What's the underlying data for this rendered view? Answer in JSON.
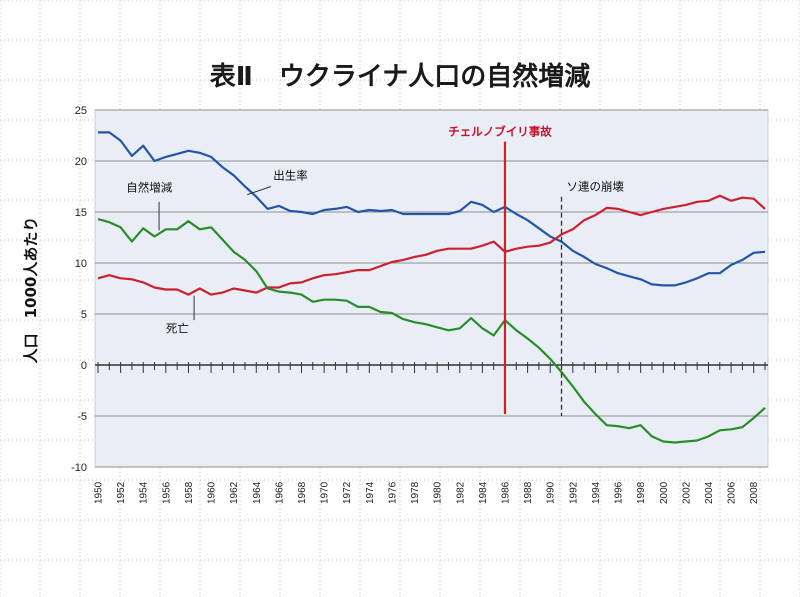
{
  "chart_data": {
    "type": "line",
    "title": "表Ⅱ　ウクライナ人口の自然増減",
    "ylabel": "人口　1000人あたり",
    "xlabel": "",
    "ylim": [
      -10,
      25
    ],
    "yticks": [
      -10,
      -5,
      0,
      5,
      10,
      15,
      20,
      25
    ],
    "xlim": [
      1950,
      2009
    ],
    "xtick_labels": [
      "1950",
      "1952",
      "1954",
      "1956",
      "1958",
      "1960",
      "1962",
      "1964",
      "1966",
      "1968",
      "1970",
      "1972",
      "1974",
      "1976",
      "1978",
      "1980",
      "1982",
      "1984",
      "1986",
      "1988",
      "1990",
      "1992",
      "1994",
      "1996",
      "1998",
      "2000",
      "2002",
      "2004",
      "2006",
      "2008"
    ],
    "grid": true,
    "x": [
      1950,
      1951,
      1952,
      1953,
      1954,
      1955,
      1956,
      1957,
      1958,
      1959,
      1960,
      1961,
      1962,
      1963,
      1964,
      1965,
      1966,
      1967,
      1968,
      1969,
      1970,
      1971,
      1972,
      1973,
      1974,
      1975,
      1976,
      1977,
      1978,
      1979,
      1980,
      1981,
      1982,
      1983,
      1984,
      1985,
      1986,
      1987,
      1988,
      1989,
      1990,
      1991,
      1992,
      1993,
      1994,
      1995,
      1996,
      1997,
      1998,
      1999,
      2000,
      2001,
      2002,
      2003,
      2004,
      2005,
      2006,
      2007,
      2008,
      2009
    ],
    "series": [
      {
        "name": "出生率",
        "color": "#2456a6",
        "values": [
          22.8,
          22.8,
          22.0,
          20.5,
          21.5,
          20.0,
          20.4,
          20.7,
          21.0,
          20.8,
          20.4,
          19.4,
          18.6,
          17.5,
          16.5,
          15.3,
          15.6,
          15.1,
          15.0,
          14.8,
          15.2,
          15.3,
          15.5,
          15.0,
          15.2,
          15.1,
          15.2,
          14.8,
          14.8,
          14.8,
          14.8,
          14.8,
          15.1,
          16.0,
          15.7,
          15.0,
          15.5,
          14.8,
          14.2,
          13.4,
          12.6,
          12.1,
          11.2,
          10.6,
          9.9,
          9.5,
          9.0,
          8.7,
          8.4,
          7.9,
          7.8,
          7.8,
          8.1,
          8.5,
          9.0,
          9.0,
          9.8,
          10.3,
          11.0,
          11.1
        ]
      },
      {
        "name": "死亡",
        "color": "#cc1f2f",
        "values": [
          8.5,
          8.8,
          8.5,
          8.4,
          8.1,
          7.6,
          7.4,
          7.4,
          6.9,
          7.5,
          6.9,
          7.1,
          7.5,
          7.3,
          7.1,
          7.6,
          7.6,
          8.0,
          8.1,
          8.5,
          8.8,
          8.9,
          9.1,
          9.3,
          9.3,
          9.7,
          10.1,
          10.3,
          10.6,
          10.8,
          11.2,
          11.4,
          11.4,
          11.4,
          11.7,
          12.1,
          11.1,
          11.4,
          11.6,
          11.7,
          12.0,
          12.8,
          13.3,
          14.2,
          14.7,
          15.4,
          15.3,
          15.0,
          14.7,
          15.0,
          15.3,
          15.5,
          15.7,
          16.0,
          16.1,
          16.6,
          16.1,
          16.4,
          16.3,
          15.3
        ]
      },
      {
        "name": "自然増減",
        "color": "#2a8c2a",
        "values": [
          14.3,
          14.0,
          13.5,
          12.1,
          13.4,
          12.6,
          13.3,
          13.3,
          14.1,
          13.3,
          13.5,
          12.3,
          11.1,
          10.3,
          9.2,
          7.5,
          7.2,
          7.1,
          6.9,
          6.2,
          6.4,
          6.4,
          6.3,
          5.7,
          5.7,
          5.2,
          5.1,
          4.5,
          4.2,
          4.0,
          3.7,
          3.4,
          3.6,
          4.6,
          3.6,
          2.9,
          4.4,
          3.4,
          2.6,
          1.7,
          0.6,
          -0.7,
          -2.1,
          -3.6,
          -4.8,
          -5.9,
          -6.0,
          -6.2,
          -5.9,
          -7.0,
          -7.5,
          -7.6,
          -7.5,
          -7.4,
          -7.0,
          -6.4,
          -6.3,
          -6.1,
          -5.2,
          -4.2
        ]
      }
    ],
    "annotations": [
      {
        "text": "出生率",
        "x": 1965.5,
        "y": 18.2
      },
      {
        "text": "自然増減",
        "x": 1952.5,
        "y": 17.0
      },
      {
        "text": "死亡",
        "x": 1956,
        "y": 3.2
      }
    ],
    "events": [
      {
        "label": "チェルノブイリ事故",
        "year": 1986,
        "color": "#cc1f2f",
        "style": "solid",
        "y_from": -4.8,
        "y_to": 21.9
      },
      {
        "label": "ソ連の崩壊",
        "year": 1991,
        "color": "#333333",
        "style": "dashed",
        "y_from": -5.0,
        "y_to": 16.5
      }
    ]
  }
}
